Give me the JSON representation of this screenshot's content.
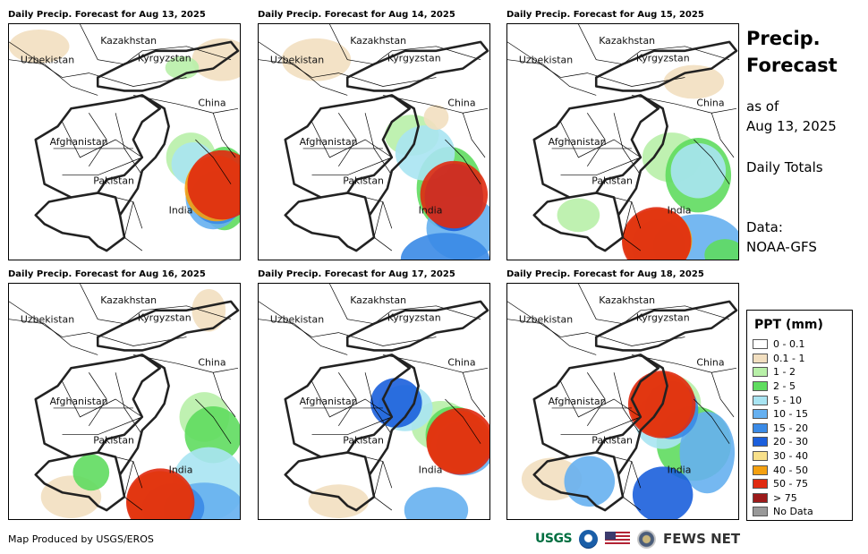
{
  "panels": [
    {
      "title": "Daily Precip. Forecast for Aug 13, 2025"
    },
    {
      "title": "Daily Precip. Forecast for Aug 14, 2025"
    },
    {
      "title": "Daily Precip. Forecast for Aug 15, 2025"
    },
    {
      "title": "Daily Precip. Forecast for Aug 16, 2025"
    },
    {
      "title": "Daily Precip. Forecast for Aug 17, 2025"
    },
    {
      "title": "Daily Precip. Forecast for Aug 18, 2025"
    }
  ],
  "map_labels": {
    "kazakhstan": "Kazakhstan",
    "uzbekistan": "Uzbekistan",
    "kyrgyzstan": "Kyrgyzstan",
    "china": "China",
    "afghanistan": "Afghanistan",
    "pakistan": "Pakistan",
    "india": "India"
  },
  "sidebar": {
    "title_line1": "Precip.",
    "title_line2": "Forecast",
    "asof_line1": "as of",
    "asof_line2": "Aug 13, 2025",
    "daily": "Daily Totals",
    "data_label": "Data:",
    "data_source": "NOAA-GFS"
  },
  "legend": {
    "title": "PPT (mm)",
    "items": [
      {
        "label": "0 - 0.1",
        "color": "#ffffff"
      },
      {
        "label": "0.1 - 1",
        "color": "#f2dfc0"
      },
      {
        "label": "1 - 2",
        "color": "#b8f0a8"
      },
      {
        "label": "2 - 5",
        "color": "#5fdc5f"
      },
      {
        "label": "5 - 10",
        "color": "#a8e4f2"
      },
      {
        "label": "10 - 15",
        "color": "#66b0f0"
      },
      {
        "label": "15 - 20",
        "color": "#3a8ae6"
      },
      {
        "label": "20 - 30",
        "color": "#1b5fdc"
      },
      {
        "label": "30 - 40",
        "color": "#f8e08a"
      },
      {
        "label": "40 - 50",
        "color": "#f4a010"
      },
      {
        "label": "50 - 75",
        "color": "#e02a10"
      },
      {
        "label": "> 75",
        "color": "#9c1a1a"
      },
      {
        "label": "No Data",
        "color": "#999999"
      }
    ]
  },
  "footer": {
    "credit": "Map Produced by USGS/EROS",
    "usgs": "USGS",
    "fews": "FEWS NET"
  }
}
